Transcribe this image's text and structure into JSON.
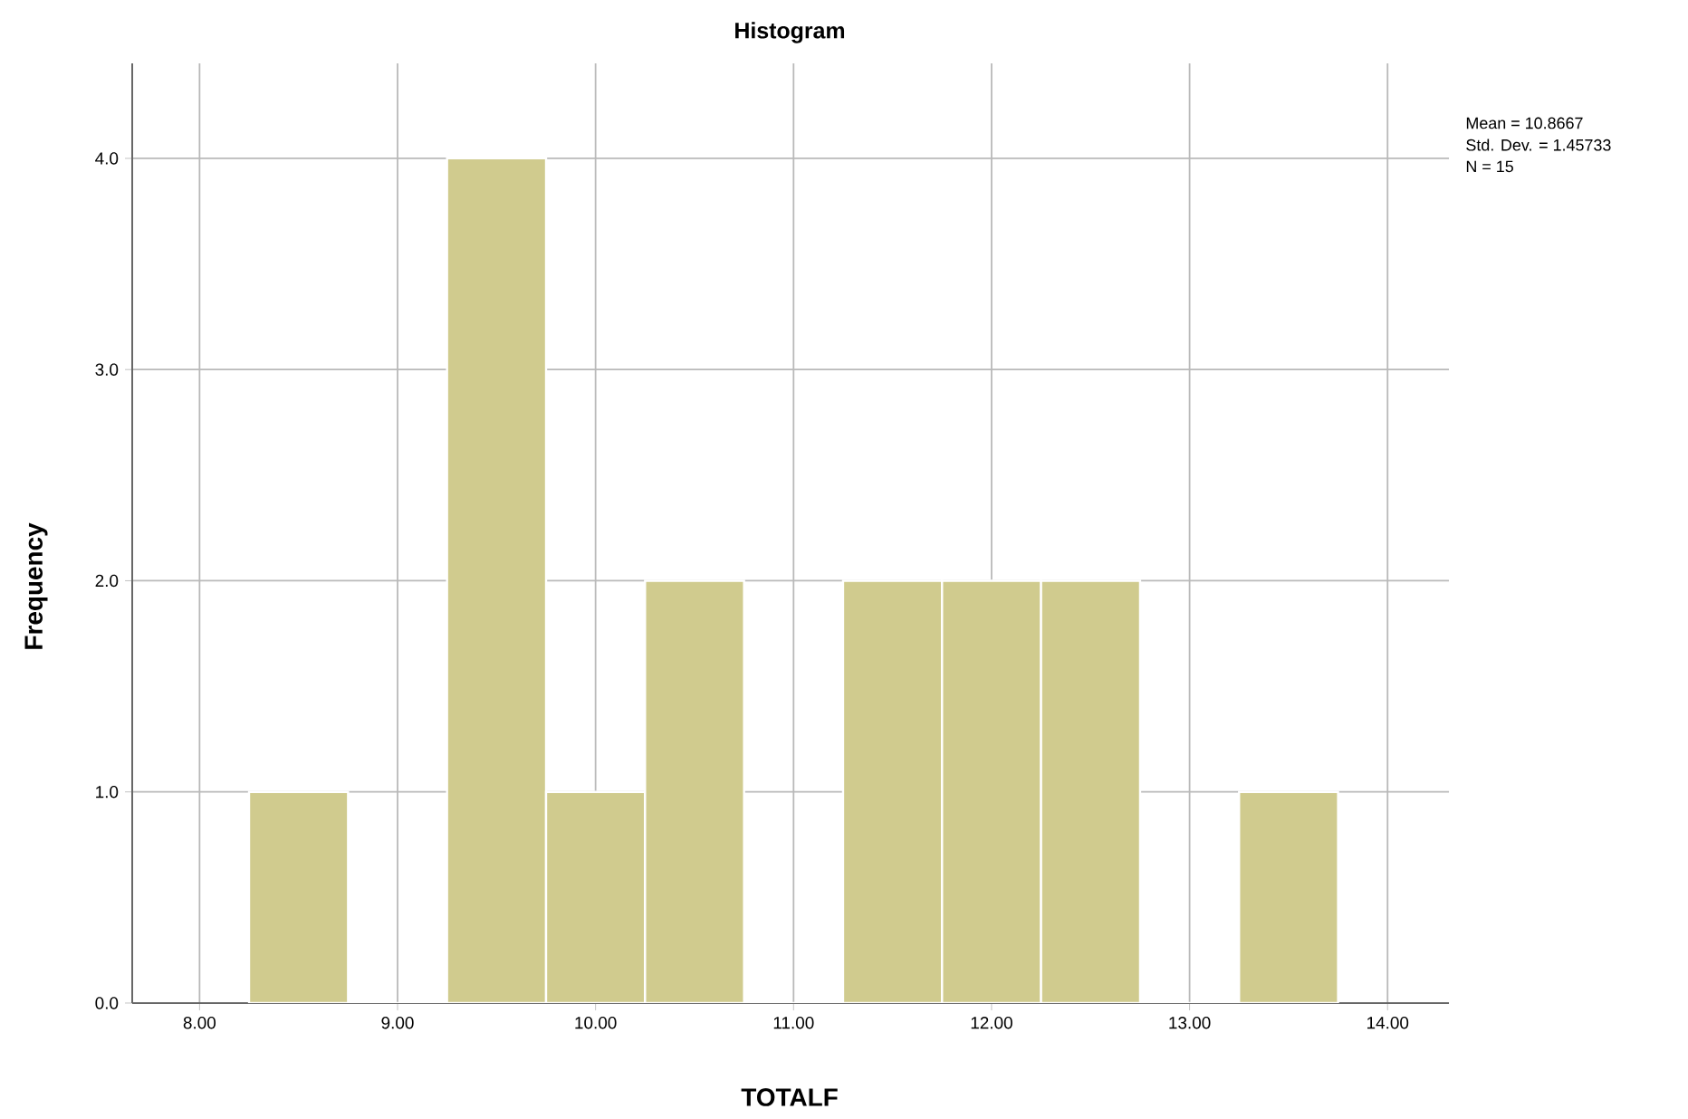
{
  "chart_data": {
    "type": "histogram",
    "title": "Histogram",
    "xlabel": "TOTALF",
    "ylabel": "Frequency",
    "bins": [
      8.25,
      8.75,
      9.25,
      9.75,
      10.25,
      10.75,
      11.25,
      11.75,
      12.25,
      12.75,
      13.25,
      13.75
    ],
    "values": [
      1,
      0,
      4,
      1,
      2,
      0,
      2,
      2,
      2,
      0,
      1
    ],
    "color": "#d0cb8e",
    "xlim": [
      7.66,
      14.31
    ],
    "ylim": [
      0,
      4.45
    ],
    "xticks": [
      {
        "value": 8,
        "label": "8.00"
      },
      {
        "value": 9,
        "label": "9.00"
      },
      {
        "value": 10,
        "label": "10.00"
      },
      {
        "value": 11,
        "label": "11.00"
      },
      {
        "value": 12,
        "label": "12.00"
      },
      {
        "value": 13,
        "label": "13.00"
      },
      {
        "value": 14,
        "label": "14.00"
      }
    ],
    "yticks": [
      {
        "value": 0,
        "label": "0.0"
      },
      {
        "value": 1,
        "label": "1.0"
      },
      {
        "value": 2,
        "label": "2.0"
      },
      {
        "value": 3,
        "label": "3.0"
      },
      {
        "value": 4,
        "label": "4.0"
      }
    ],
    "grid": true,
    "annotations": [
      "Mean = 10.8667",
      "Std. Dev. = 1.45733",
      "N = 15"
    ]
  }
}
